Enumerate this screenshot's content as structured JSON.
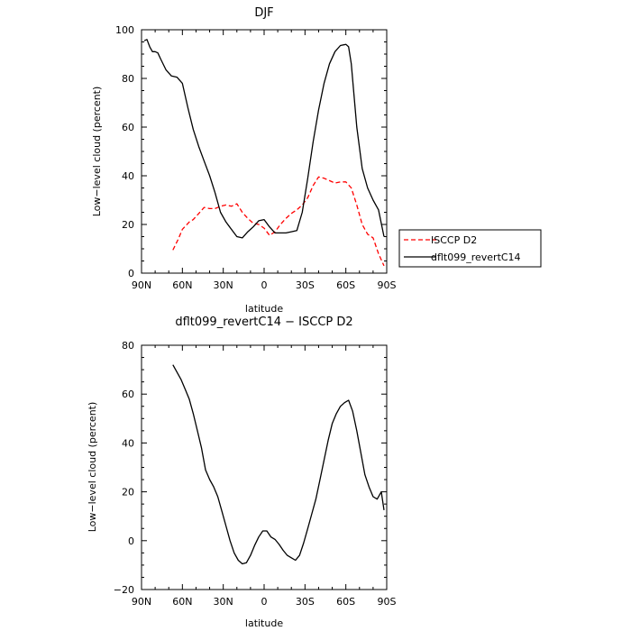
{
  "chart_data": [
    {
      "type": "line",
      "title": "DJF",
      "xlabel": "latitude",
      "ylabel": "Low−level cloud (percent)",
      "xlim": [
        90,
        -90
      ],
      "ylim": [
        0,
        100
      ],
      "x_ticks": [
        90,
        60,
        30,
        0,
        -30,
        -60,
        -90
      ],
      "x_tick_labels": [
        "90N",
        "60N",
        "30N",
        "0",
        "30S",
        "60S",
        "90S"
      ],
      "y_ticks": [
        0,
        20,
        40,
        60,
        80,
        100
      ],
      "y_tick_labels": [
        "0",
        "20",
        "40",
        "60",
        "80",
        "100"
      ],
      "grid": false,
      "legend": "outside-right",
      "series": [
        {
          "name": "ISCCP D2",
          "color": "#ff0000",
          "dash": "dashed",
          "x": [
            67,
            63,
            60,
            55,
            52,
            48,
            44,
            40,
            36,
            32,
            28,
            24,
            20,
            16,
            12,
            8,
            4,
            0,
            -4,
            -8,
            -12,
            -16,
            -20,
            -24,
            -28,
            -32,
            -36,
            -40,
            -44,
            -48,
            -52,
            -56,
            -60,
            -64,
            -68,
            -72,
            -76,
            -80,
            -84,
            -88
          ],
          "y": [
            9.5,
            14,
            18,
            21,
            22,
            24.5,
            27,
            26.5,
            26.5,
            27.5,
            28,
            27.5,
            28.5,
            25,
            22.5,
            20.5,
            20,
            18.5,
            15.5,
            17,
            20,
            22.5,
            24.5,
            26,
            28,
            31,
            36,
            39.5,
            39,
            38,
            37,
            37.5,
            37.5,
            35,
            28,
            20,
            16,
            14.5,
            8,
            3
          ]
        },
        {
          "name": "dflt099_revertC14",
          "color": "#000000",
          "dash": "solid",
          "x": [
            88,
            86,
            84,
            82,
            80,
            78,
            76,
            72,
            68,
            64,
            60,
            56,
            52,
            48,
            44,
            40,
            36,
            32,
            28,
            24,
            20,
            16,
            12,
            8,
            4,
            0,
            -4,
            -8,
            -12,
            -16,
            -20,
            -24,
            -28,
            -32,
            -36,
            -40,
            -44,
            -48,
            -52,
            -56,
            -60,
            -62,
            -64,
            -68,
            -72,
            -76,
            -80,
            -84,
            -88
          ],
          "y": [
            95.5,
            96,
            93,
            91,
            91,
            90.5,
            88,
            83.5,
            81,
            80.5,
            78,
            68,
            59,
            52,
            46,
            40,
            33,
            25,
            21,
            18,
            15,
            14.5,
            17,
            19,
            21.5,
            22,
            19,
            16.5,
            16.5,
            16.5,
            17,
            17.5,
            25,
            39,
            54,
            67,
            78,
            86,
            91,
            93.5,
            94,
            93,
            86,
            60,
            43,
            35,
            30,
            26,
            15
          ]
        }
      ]
    },
    {
      "type": "line",
      "title": "dflt099_revertC14 − ISCCP D2",
      "xlabel": "latitude",
      "ylabel": "Low−level cloud (percent)",
      "xlim": [
        90,
        -90
      ],
      "ylim": [
        -20,
        80
      ],
      "x_ticks": [
        90,
        60,
        30,
        0,
        -30,
        -60,
        -90
      ],
      "x_tick_labels": [
        "90N",
        "60N",
        "30N",
        "0",
        "30S",
        "60S",
        "90S"
      ],
      "y_ticks": [
        -20,
        0,
        20,
        40,
        60,
        80
      ],
      "y_tick_labels": [
        "−20",
        "0",
        "20",
        "40",
        "60",
        "80"
      ],
      "grid": false,
      "series": [
        {
          "name": "",
          "color": "#000000",
          "dash": "solid",
          "x": [
            67,
            64,
            61,
            58,
            55,
            52,
            49,
            46,
            43,
            40,
            37,
            34,
            31,
            28,
            25,
            22,
            19,
            16,
            13,
            10,
            7,
            4,
            1,
            -2,
            -5,
            -8,
            -11,
            -14,
            -17,
            -20,
            -23,
            -26,
            -29,
            -32,
            -35,
            -38,
            -41,
            -44,
            -47,
            -50,
            -53,
            -56,
            -59,
            -62,
            -65,
            -68,
            -71,
            -74,
            -77,
            -80,
            -83,
            -86,
            -88
          ],
          "y": [
            72,
            69,
            66,
            62,
            58,
            52,
            45,
            38,
            29,
            25,
            22,
            18,
            12,
            6,
            0,
            -5,
            -8,
            -9.5,
            -9,
            -6,
            -2,
            1.5,
            4,
            4,
            1.5,
            0.5,
            -1.5,
            -4,
            -6,
            -7,
            -8,
            -6,
            -1,
            5,
            11,
            17,
            25,
            33,
            41,
            48,
            52,
            55,
            56.5,
            57.5,
            53,
            45,
            36,
            27,
            22,
            18,
            17,
            20,
            12.5
          ]
        }
      ]
    }
  ]
}
